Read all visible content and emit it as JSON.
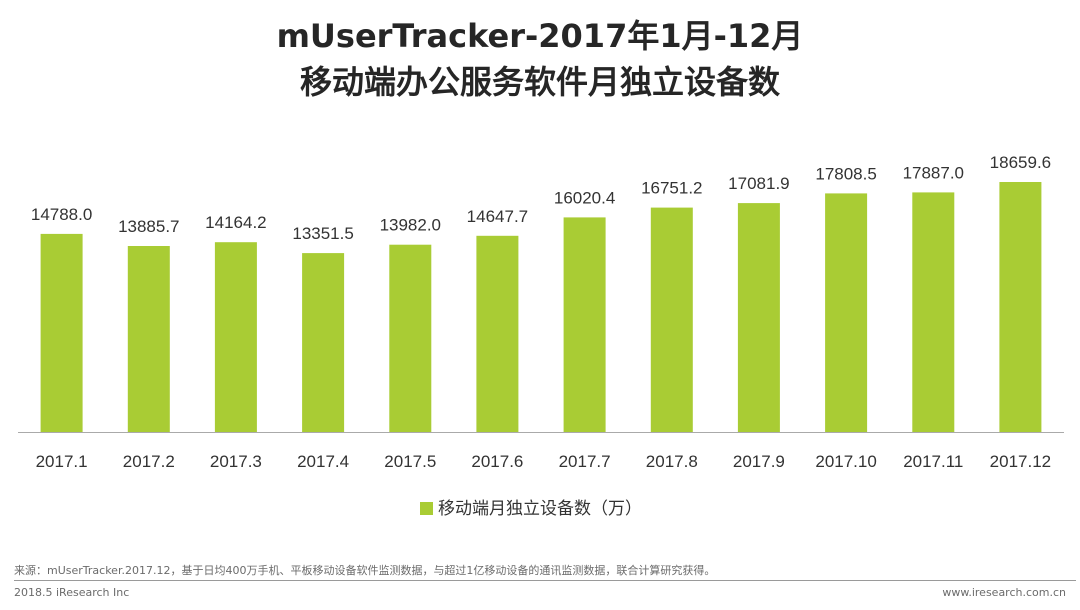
{
  "title": {
    "line1": "mUserTracker-2017年1月-12月",
    "line2": "移动端办公服务软件月独立设备数"
  },
  "colors": {
    "bar": "#a9cc34",
    "text": "#333333",
    "axis": "#aaaaaa"
  },
  "chart_data": {
    "type": "bar",
    "title": "移动端办公服务软件月独立设备数",
    "categories": [
      "2017.1",
      "2017.2",
      "2017.3",
      "2017.4",
      "2017.5",
      "2017.6",
      "2017.7",
      "2017.8",
      "2017.9",
      "2017.10",
      "2017.11",
      "2017.12"
    ],
    "series": [
      {
        "name": "移动端月独立设备数（万）",
        "values": [
          14788.0,
          13885.7,
          14164.2,
          13351.5,
          13982.0,
          14647.7,
          16020.4,
          16751.2,
          17081.9,
          17808.5,
          17887.0,
          18659.6
        ],
        "labels": [
          "14788.0",
          "13885.7",
          "14164.2",
          "13351.5",
          "13982.0",
          "14647.7",
          "16020.4",
          "16751.2",
          "17081.9",
          "17808.5",
          "17887.0",
          "18659.6"
        ]
      }
    ],
    "xlabel": "",
    "ylabel": "",
    "ylim": [
      0,
      18659.6
    ],
    "grid": false,
    "legend": "bottom"
  },
  "footer": {
    "source": "来源：mUserTracker.2017.12，基于日均400万手机、平板移动设备软件监测数据，与超过1亿移动设备的通讯监测数据，联合计算研究获得。",
    "copyright": "2018.5 iResearch Inc",
    "website": "www.iresearch.com.cn"
  }
}
